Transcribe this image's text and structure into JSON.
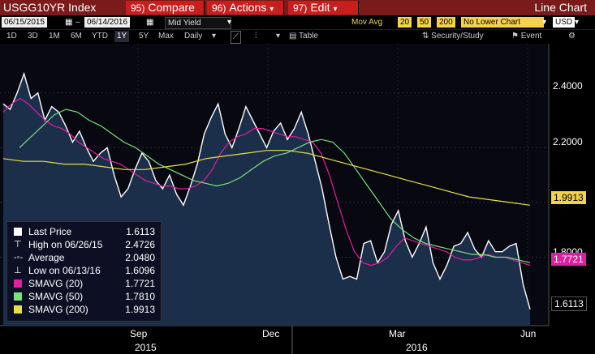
{
  "toolbar": {
    "title": "USGG10YR Index",
    "compare_num": "95)",
    "compare": "Compare",
    "actions_num": "96)",
    "actions": "Actions",
    "edit_num": "97)",
    "edit": "Edit",
    "line_chart": "Line Chart"
  },
  "controls": {
    "start_date": "06/15/2015",
    "end_date": "06/14/2016",
    "field": "Mid Yield",
    "mov_avg_label": "Mov Avg",
    "ma1": "20",
    "ma2": "50",
    "ma3": "200",
    "lower_chart": "No Lower Chart",
    "currency": "USD"
  },
  "periods": [
    "1D",
    "3D",
    "1M",
    "6M",
    "YTD",
    "1Y",
    "5Y",
    "Max"
  ],
  "selected_period": "1Y",
  "frequency": "Daily",
  "table_label": "Table",
  "security_study": "Security/Study",
  "event": "Event",
  "legend": [
    {
      "name": "Last Price",
      "value": "1.6113",
      "color": "#ffffff"
    },
    {
      "name": "High on 06/26/15",
      "value": "2.4726",
      "color": "#ffffff"
    },
    {
      "name": "Average",
      "value": "2.0480",
      "color": "#ffffff"
    },
    {
      "name": "Low on 06/13/16",
      "value": "1.6096",
      "color": "#ffffff"
    },
    {
      "name": "SMAVG (20)",
      "value": "1.7721",
      "color": "#e01ea0"
    },
    {
      "name": "SMAVG (50)",
      "value": "1.7810",
      "color": "#7ae07a"
    },
    {
      "name": "SMAVG (200)",
      "value": "1.9913",
      "color": "#e8e046"
    }
  ],
  "axis": {
    "y_ticks": [
      "2.4000",
      "2.2000",
      "2.0000",
      "1.8000"
    ],
    "tags": [
      {
        "value": "1.9913",
        "color": "#f4d24a",
        "text": "#000"
      },
      {
        "value": "1.7721",
        "color": "#e01ea0",
        "text": "#fff"
      },
      {
        "value": "1.6113",
        "color": "#000",
        "text": "#fff"
      }
    ],
    "x_months": [
      "Sep",
      "Dec",
      "Mar",
      "Jun"
    ],
    "x_years": [
      "2015",
      "2016"
    ]
  },
  "chart_data": {
    "type": "line",
    "ylim": [
      1.55,
      2.55
    ],
    "series": [
      {
        "name": "Last Price",
        "color": "#ffffff",
        "values": [
          2.36,
          2.34,
          2.4,
          2.47,
          2.38,
          2.4,
          2.3,
          2.35,
          2.33,
          2.28,
          2.22,
          2.26,
          2.2,
          2.15,
          2.18,
          2.2,
          2.1,
          2.02,
          2.05,
          2.12,
          2.18,
          2.15,
          2.08,
          2.05,
          2.1,
          2.03,
          1.99,
          2.06,
          2.14,
          2.25,
          2.31,
          2.36,
          2.25,
          2.2,
          2.27,
          2.35,
          2.3,
          2.25,
          2.2,
          2.26,
          2.29,
          2.23,
          2.27,
          2.33,
          2.25,
          2.15,
          2.05,
          1.92,
          1.8,
          1.72,
          1.73,
          1.72,
          1.85,
          1.86,
          1.78,
          1.82,
          1.92,
          1.97,
          1.86,
          1.8,
          1.85,
          1.91,
          1.78,
          1.72,
          1.77,
          1.84,
          1.85,
          1.89,
          1.83,
          1.8,
          1.86,
          1.82,
          1.82,
          1.84,
          1.85,
          1.7,
          1.61
        ]
      },
      {
        "name": "SMAVG (20)",
        "color": "#e01ea0",
        "values": [
          2.33,
          2.36,
          2.38,
          2.36,
          2.33,
          2.3,
          2.28,
          2.27,
          2.25,
          2.22,
          2.2,
          2.18,
          2.16,
          2.15,
          2.14,
          2.12,
          2.1,
          2.08,
          2.07,
          2.06,
          2.06,
          2.05,
          2.05,
          2.06,
          2.08,
          2.12,
          2.18,
          2.22,
          2.24,
          2.25,
          2.27,
          2.27,
          2.26,
          2.25,
          2.24,
          2.24,
          2.23,
          2.22,
          2.18,
          2.1,
          2.0,
          1.9,
          1.82,
          1.78,
          1.77,
          1.78,
          1.8,
          1.84,
          1.87,
          1.86,
          1.85,
          1.84,
          1.83,
          1.82,
          1.8,
          1.79,
          1.79,
          1.8,
          1.81,
          1.8,
          1.8,
          1.79,
          1.78,
          1.77
        ]
      },
      {
        "name": "SMAVG (50)",
        "color": "#7ae07a",
        "values": [
          2.2,
          2.24,
          2.28,
          2.32,
          2.34,
          2.33,
          2.3,
          2.28,
          2.25,
          2.22,
          2.2,
          2.17,
          2.14,
          2.12,
          2.1,
          2.08,
          2.07,
          2.06,
          2.07,
          2.09,
          2.12,
          2.15,
          2.17,
          2.18,
          2.2,
          2.22,
          2.23,
          2.22,
          2.18,
          2.12,
          2.06,
          2.0,
          1.94,
          1.9,
          1.87,
          1.85,
          1.84,
          1.83,
          1.82,
          1.81,
          1.81,
          1.8,
          1.8,
          1.79,
          1.78
        ]
      },
      {
        "name": "SMAVG (200)",
        "color": "#e8e046",
        "values": [
          2.16,
          2.15,
          2.15,
          2.14,
          2.14,
          2.13,
          2.12,
          2.12,
          2.13,
          2.14,
          2.16,
          2.17,
          2.18,
          2.19,
          2.19,
          2.18,
          2.16,
          2.14,
          2.12,
          2.1,
          2.08,
          2.06,
          2.04,
          2.02,
          2.01,
          2.0,
          1.99
        ]
      }
    ]
  }
}
